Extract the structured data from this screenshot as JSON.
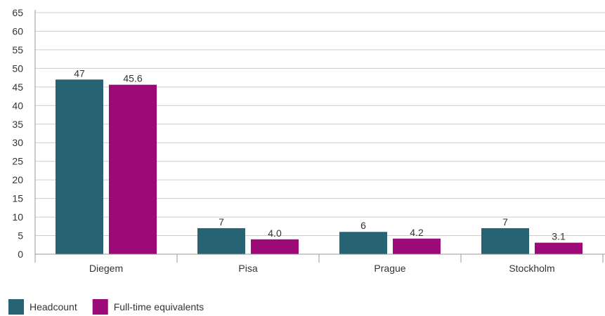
{
  "chart_data": {
    "type": "bar",
    "categories": [
      "Diegem",
      "Pisa",
      "Prague",
      "Stockholm"
    ],
    "series": [
      {
        "name": "Headcount",
        "values": [
          47,
          7,
          6,
          7
        ],
        "labels": [
          "47",
          "7",
          "6",
          "7"
        ],
        "color": "#266373"
      },
      {
        "name": "Full-time equivalents",
        "values": [
          45.6,
          4.0,
          4.2,
          3.1
        ],
        "labels": [
          "45.6",
          "4.0",
          "4.2",
          "3.1"
        ],
        "color": "#9c0a78"
      }
    ],
    "title": "",
    "xlabel": "",
    "ylabel": "",
    "ylim": [
      0,
      65
    ],
    "yticks": [
      "0",
      "5",
      "10",
      "15",
      "20",
      "25",
      "30",
      "35",
      "40",
      "45",
      "50",
      "55",
      "60",
      "65"
    ],
    "grid": true,
    "legend_position": "bottom-left"
  },
  "colors": {
    "grid": "#cccccc",
    "axis": "#999999"
  }
}
